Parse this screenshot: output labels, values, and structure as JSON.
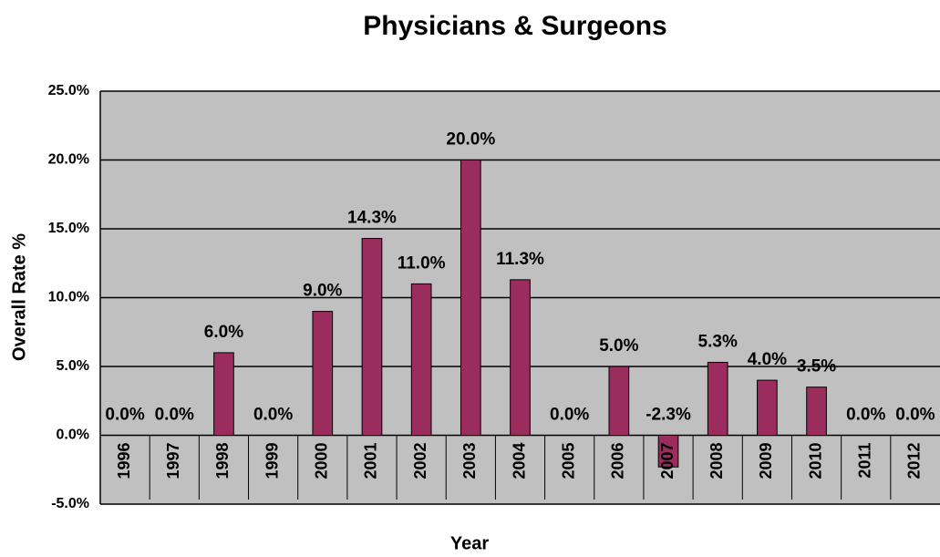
{
  "chart_data": {
    "type": "bar",
    "title": "Physicians & Surgeons",
    "x_label": "Year",
    "y_label": "Overall Rate %",
    "categories": [
      "1996",
      "1997",
      "1998",
      "1999",
      "2000",
      "2001",
      "2002",
      "2003",
      "2004",
      "2005",
      "2006",
      "2007",
      "2008",
      "2009",
      "2010",
      "2011",
      "2012"
    ],
    "values": [
      0,
      0,
      6,
      0,
      9,
      14.3,
      11,
      20,
      11.3,
      0,
      5,
      -2.3,
      5.3,
      4,
      3.5,
      0,
      0
    ],
    "value_labels": [
      "0.0%",
      "0.0%",
      "6.0%",
      "0.0%",
      "9.0%",
      "14.3%",
      "11.0%",
      "20.0%",
      "11.3%",
      "0.0%",
      "5.0%",
      "-2.3%",
      "5.3%",
      "4.0%",
      "3.5%",
      "0.0%",
      "0.0%"
    ],
    "color": "#9b2d5e",
    "ylim": [
      -5,
      25
    ],
    "yticks": [
      {
        "value": -5,
        "label": "-5.0%"
      },
      {
        "value": 0,
        "label": "0.0%"
      },
      {
        "value": 5,
        "label": "5.0%"
      },
      {
        "value": 10,
        "label": "10.0%"
      },
      {
        "value": 15,
        "label": "15.0%"
      },
      {
        "value": 20,
        "label": "20.0%"
      },
      {
        "value": 25,
        "label": "25.0%"
      }
    ],
    "grid": true
  }
}
